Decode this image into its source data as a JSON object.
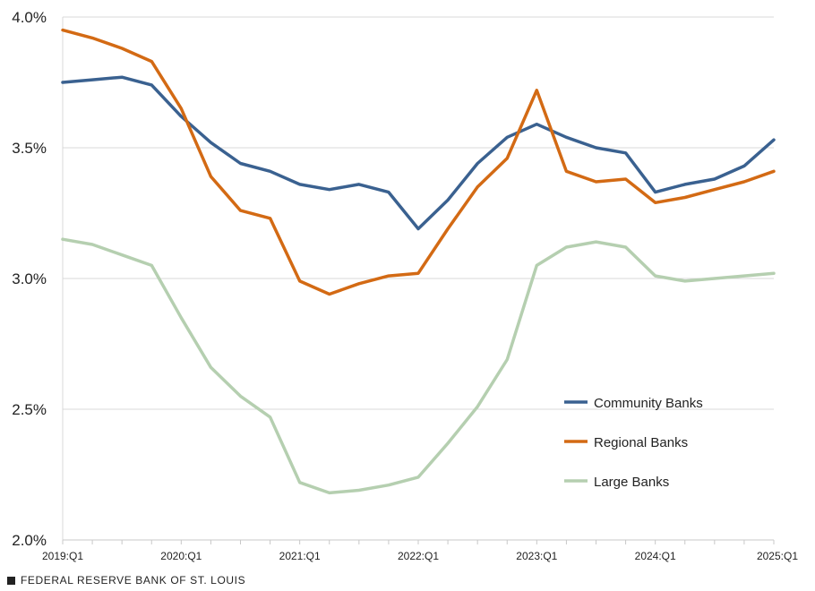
{
  "chart_data": {
    "type": "line",
    "title": "",
    "xlabel": "",
    "ylabel": "",
    "ylim": [
      2.0,
      4.0
    ],
    "y_ticks": [
      {
        "value": 2.0,
        "label": "2.0%"
      },
      {
        "value": 2.5,
        "label": "2.5%"
      },
      {
        "value": 3.0,
        "label": "3.0%"
      },
      {
        "value": 3.5,
        "label": "3.5%"
      },
      {
        "value": 4.0,
        "label": "4.0%"
      }
    ],
    "x": [
      "2019:Q1",
      "2019:Q2",
      "2019:Q3",
      "2019:Q4",
      "2020:Q1",
      "2020:Q2",
      "2020:Q3",
      "2020:Q4",
      "2021:Q1",
      "2021:Q2",
      "2021:Q3",
      "2021:Q4",
      "2022:Q1",
      "2022:Q2",
      "2022:Q3",
      "2022:Q4",
      "2023:Q1",
      "2023:Q2",
      "2023:Q3",
      "2023:Q4",
      "2024:Q1",
      "2024:Q2",
      "2024:Q3",
      "2024:Q4",
      "2025:Q1"
    ],
    "x_tick_labels": [
      "2019:Q1",
      "2020:Q1",
      "2021:Q1",
      "2022:Q1",
      "2023:Q1",
      "2024:Q1",
      "2025:Q1"
    ],
    "legend_position": "right-middle",
    "series": [
      {
        "name": "Community Banks",
        "color": "#3a6190",
        "values": [
          3.75,
          3.76,
          3.77,
          3.74,
          3.62,
          3.52,
          3.44,
          3.41,
          3.36,
          3.34,
          3.36,
          3.33,
          3.19,
          3.3,
          3.44,
          3.54,
          3.59,
          3.54,
          3.5,
          3.48,
          3.33,
          3.36,
          3.38,
          3.43,
          3.53
        ]
      },
      {
        "name": "Regional Banks",
        "color": "#d36a14",
        "values": [
          3.95,
          3.92,
          3.88,
          3.83,
          3.65,
          3.39,
          3.26,
          3.23,
          2.99,
          2.94,
          2.98,
          3.01,
          3.02,
          3.19,
          3.35,
          3.46,
          3.72,
          3.41,
          3.37,
          3.38,
          3.29,
          3.31,
          3.34,
          3.37,
          3.41
        ]
      },
      {
        "name": "Large Banks",
        "color": "#b5cfb0",
        "values": [
          3.15,
          3.13,
          3.09,
          3.05,
          2.85,
          2.66,
          2.55,
          2.47,
          2.22,
          2.18,
          2.19,
          2.21,
          2.24,
          2.37,
          2.51,
          2.69,
          3.05,
          3.12,
          3.14,
          3.12,
          3.01,
          2.99,
          3.0,
          3.01,
          3.02
        ]
      }
    ]
  },
  "footer": {
    "source": "FEDERAL RESERVE BANK OF ST. LOUIS"
  }
}
